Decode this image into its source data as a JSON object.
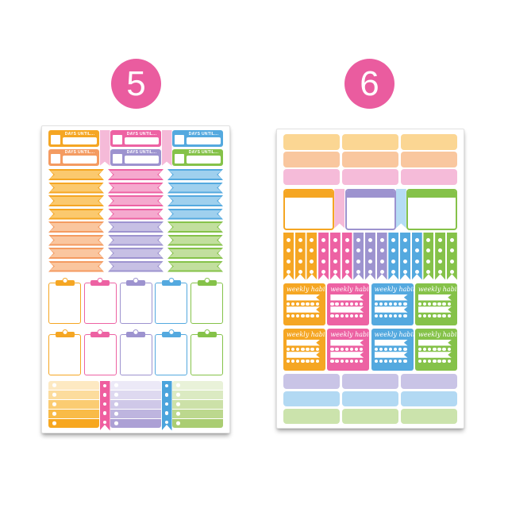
{
  "badges": [
    {
      "label": "5"
    },
    {
      "label": "6"
    }
  ],
  "palette": {
    "badgePink": "#EA5C9F",
    "gold": "#F5A623",
    "goldLight": "#FBC96E",
    "salmon": "#F49B61",
    "salmonLight": "#FAC69F",
    "pink": "#ED62A3",
    "pinkLight": "#F5A9CE",
    "purple": "#9D93CF",
    "purpleLight": "#C7C0E4",
    "blue": "#54A9DF",
    "blueLight": "#9FD0EE",
    "green": "#85C249",
    "greenLight": "#C2DF9E",
    "blushPink": "#F5BAD8",
    "skyBlue": "#B5DCF4",
    "brightPink": "#EF5E9F",
    "medBlue": "#4BA4DC",
    "topGold": "#FBD693",
    "topPeach": "#F9C79F",
    "topPink": "#F5BBD9",
    "botPurple": "#C9C4E6",
    "botBlue": "#B2D9F3",
    "botGreen": "#CBE3AC"
  },
  "sheet5": {
    "days_until": {
      "label": "DAYS UNTIL...",
      "columns": [
        [
          "gold",
          "salmon"
        ],
        [
          "pink",
          "purple"
        ],
        [
          "blue",
          "green"
        ]
      ],
      "ribbon_color": "blushPink"
    },
    "banners": {
      "rows": [
        [
          "gold",
          "pink",
          "blue"
        ],
        [
          "gold",
          "pink",
          "blue"
        ],
        [
          "gold",
          "pink",
          "blue"
        ],
        [
          "gold",
          "pink",
          "blue"
        ],
        [
          "salmon",
          "purple",
          "green"
        ],
        [
          "salmon",
          "purple",
          "green"
        ],
        [
          "salmon",
          "purple",
          "green"
        ],
        [
          "salmon",
          "purple",
          "green"
        ]
      ]
    },
    "clipboards": {
      "rows": [
        [
          "gold",
          "pink",
          "purple",
          "blue",
          "green"
        ],
        [
          "gold",
          "pink",
          "purple",
          "blue",
          "green"
        ]
      ]
    },
    "checklists": {
      "stripes": {
        "orange": [
          "#FDE9C2",
          "#FCDC9D",
          "#FBCC72",
          "#F9BB47",
          "#F7A71F"
        ],
        "purple": [
          "#ECE9F7",
          "#DED9F0",
          "#CFC8E8",
          "#BEB5DF",
          "#ACA0D5"
        ],
        "green": [
          "#E9F2D9",
          "#DBEAC2",
          "#CCE1A8",
          "#BCD88E",
          "#AACD72"
        ]
      },
      "columns": [
        {
          "kind": "list",
          "stripes": "orange"
        },
        {
          "kind": "ribbon",
          "color": "brightPink",
          "dots": 5
        },
        {
          "kind": "list",
          "stripes": "purple"
        },
        {
          "kind": "ribbon",
          "color": "medBlue",
          "dots": 5
        },
        {
          "kind": "list",
          "stripes": "green"
        }
      ]
    }
  },
  "sheet6": {
    "top_rows": [
      "topGold",
      "topPeach",
      "topPink"
    ],
    "habit_boxes": {
      "columns": [
        {
          "kind": "box",
          "color": "gold"
        },
        {
          "kind": "ribbon",
          "color": "blushPink"
        },
        {
          "kind": "box",
          "color": "purple"
        },
        {
          "kind": "ribbon",
          "color": "skyBlue"
        },
        {
          "kind": "box",
          "color": "green"
        }
      ]
    },
    "dot_flags": {
      "dots": 4,
      "colors": [
        "gold",
        "gold",
        "gold",
        "pink",
        "pink",
        "pink",
        "purple",
        "purple",
        "purple",
        "blue",
        "blue",
        "blue",
        "green",
        "green",
        "green"
      ]
    },
    "weekly_habits": {
      "label": "weekly habits",
      "dots_per_row": 7,
      "rows": [
        [
          "gold",
          "pink",
          "blue",
          "green"
        ],
        [
          "gold",
          "pink",
          "blue",
          "green"
        ]
      ]
    },
    "bottom_rows": [
      "botPurple",
      "botBlue",
      "botGreen"
    ]
  }
}
